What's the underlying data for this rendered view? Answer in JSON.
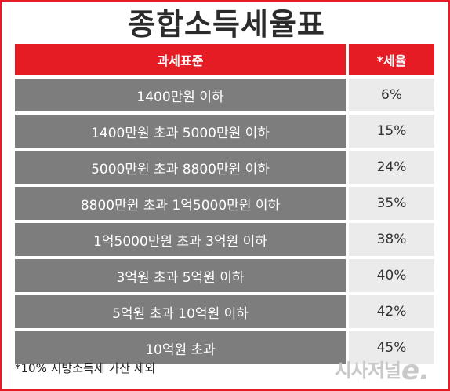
{
  "title": "종합소득세율표",
  "table": {
    "headers": [
      "과세표준",
      "*세율"
    ],
    "rows": [
      {
        "bracket": "1400만원 이하",
        "rate": "6%"
      },
      {
        "bracket": "1400만원 초과 5000만원 이하",
        "rate": "15%"
      },
      {
        "bracket": "5000만원 초과 8800만원 이하",
        "rate": "24%"
      },
      {
        "bracket": "8800만원 초과 1억5000만원 이하",
        "rate": "35%"
      },
      {
        "bracket": "1억5000만원 초과 3억원 이하",
        "rate": "38%"
      },
      {
        "bracket": "3억원 초과 5억원 이하",
        "rate": "40%"
      },
      {
        "bracket": "5억원 초과 10억원 이하",
        "rate": "42%"
      },
      {
        "bracket": "10억원 초과",
        "rate": "45%"
      }
    ]
  },
  "note": "*10% 지방소득세 가산 제외",
  "logo": {
    "text": "시사저널",
    "e": "e."
  },
  "colors": {
    "accent": "#e51c23",
    "row_dark": "#7d7d7d",
    "row_light": "#ebebeb"
  }
}
